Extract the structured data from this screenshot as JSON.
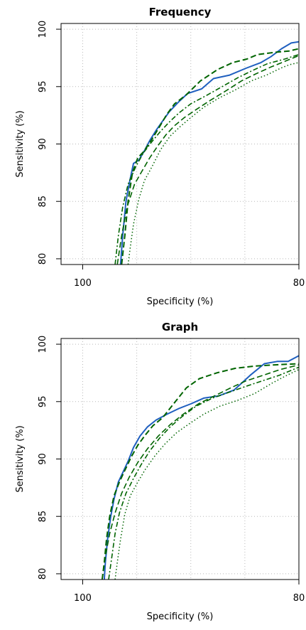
{
  "chart_data": [
    {
      "type": "line",
      "title": "Frequency",
      "xlabel": "Specificity (%)",
      "ylabel": "Sensitivity (%)",
      "xlim": [
        102,
        80
      ],
      "ylim": [
        79.5,
        100.5
      ],
      "xticks": [
        100,
        80
      ],
      "yticks": [
        80,
        85,
        90,
        95,
        100
      ],
      "grid": true,
      "series": [
        {
          "style": "solid",
          "color": "#1f5fbf",
          "width": 2,
          "points": [
            [
              96.5,
              79.5
            ],
            [
              96.3,
              82
            ],
            [
              96.0,
              85
            ],
            [
              95.6,
              87
            ],
            [
              95.3,
              88.3
            ],
            [
              94.8,
              88.6
            ],
            [
              94.3,
              89.4
            ],
            [
              93.8,
              90.3
            ],
            [
              93.2,
              91.2
            ],
            [
              92.6,
              92.0
            ],
            [
              92.0,
              92.8
            ],
            [
              91.2,
              93.6
            ],
            [
              90.3,
              94.4
            ],
            [
              89.0,
              94.8
            ],
            [
              87.9,
              95.7
            ],
            [
              86.4,
              96.0
            ],
            [
              84.9,
              96.6
            ],
            [
              83.5,
              97.1
            ],
            [
              82.6,
              97.6
            ],
            [
              81.6,
              98.3
            ],
            [
              80.7,
              98.8
            ],
            [
              80.0,
              98.9
            ]
          ]
        },
        {
          "style": "dash",
          "color": "#006400",
          "width": 2,
          "points": [
            [
              96.4,
              79.5
            ],
            [
              96.1,
              82
            ],
            [
              95.8,
              85
            ],
            [
              95.4,
              87.5
            ],
            [
              94.9,
              88.8
            ],
            [
              94.3,
              89.4
            ],
            [
              93.6,
              90.4
            ],
            [
              92.9,
              91.5
            ],
            [
              92.2,
              92.6
            ],
            [
              91.5,
              93.5
            ],
            [
              90.4,
              94.3
            ],
            [
              89.1,
              95.5
            ],
            [
              87.5,
              96.5
            ],
            [
              86.1,
              97.1
            ],
            [
              84.8,
              97.4
            ],
            [
              83.8,
              97.8
            ],
            [
              82.1,
              98.0
            ],
            [
              80.9,
              98.1
            ],
            [
              80.0,
              98.3
            ]
          ]
        },
        {
          "style": "dashdot",
          "color": "#006400",
          "width": 1.6,
          "points": [
            [
              97.0,
              79.5
            ],
            [
              96.7,
              82
            ],
            [
              96.3,
              84.5
            ],
            [
              95.8,
              86.5
            ],
            [
              95.1,
              88.0
            ],
            [
              94.4,
              89.2
            ],
            [
              93.6,
              90.2
            ],
            [
              92.8,
              91.1
            ],
            [
              92.0,
              91.9
            ],
            [
              91.1,
              92.7
            ],
            [
              90.0,
              93.5
            ],
            [
              88.6,
              94.2
            ],
            [
              87.1,
              95.0
            ],
            [
              85.6,
              95.8
            ],
            [
              84.3,
              96.4
            ],
            [
              82.9,
              97.0
            ],
            [
              81.3,
              97.4
            ],
            [
              80.0,
              97.8
            ]
          ]
        },
        {
          "style": "dash",
          "color": "#006400",
          "width": 1.6,
          "points": [
            [
              96.8,
              79.5
            ],
            [
              96.4,
              82
            ],
            [
              95.9,
              84.5
            ],
            [
              95.2,
              86.5
            ],
            [
              94.6,
              87.5
            ],
            [
              93.8,
              88.8
            ],
            [
              93.0,
              89.9
            ],
            [
              92.3,
              90.8
            ],
            [
              91.5,
              91.6
            ],
            [
              90.6,
              92.3
            ],
            [
              89.5,
              93.0
            ],
            [
              88.2,
              93.8
            ],
            [
              86.8,
              94.6
            ],
            [
              85.3,
              95.5
            ],
            [
              84.0,
              96.1
            ],
            [
              82.6,
              96.7
            ],
            [
              81.3,
              97.2
            ],
            [
              80.0,
              97.7
            ]
          ]
        },
        {
          "style": "dot",
          "color": "#006400",
          "width": 1.5,
          "points": [
            [
              95.8,
              79.5
            ],
            [
              95.6,
              81
            ],
            [
              95.3,
              83
            ],
            [
              94.8,
              85.2
            ],
            [
              94.3,
              86.8
            ],
            [
              93.6,
              88.0
            ],
            [
              92.8,
              89.5
            ],
            [
              91.9,
              90.7
            ],
            [
              91.0,
              91.5
            ],
            [
              90.0,
              92.3
            ],
            [
              88.8,
              93.2
            ],
            [
              87.4,
              94.0
            ],
            [
              85.9,
              94.7
            ],
            [
              84.4,
              95.5
            ],
            [
              83.0,
              96.0
            ],
            [
              81.7,
              96.6
            ],
            [
              80.9,
              96.9
            ],
            [
              80.0,
              97.1
            ]
          ]
        }
      ]
    },
    {
      "type": "line",
      "title": "Graph",
      "xlabel": "Specificity (%)",
      "ylabel": "Sensitivity (%)",
      "xlim": [
        102,
        80
      ],
      "ylim": [
        79.5,
        100.5
      ],
      "xticks": [
        100,
        80
      ],
      "yticks": [
        80,
        85,
        90,
        95,
        100
      ],
      "grid": true,
      "series": [
        {
          "style": "solid",
          "color": "#1f5fbf",
          "width": 2,
          "points": [
            [
              98.0,
              79.5
            ],
            [
              97.9,
              81
            ],
            [
              97.7,
              83
            ],
            [
              97.4,
              85
            ],
            [
              97.1,
              86.5
            ],
            [
              96.7,
              88.0
            ],
            [
              96.3,
              88.8
            ],
            [
              95.8,
              89.8
            ],
            [
              95.3,
              91.0
            ],
            [
              94.7,
              92.0
            ],
            [
              94.0,
              92.8
            ],
            [
              93.2,
              93.4
            ],
            [
              92.2,
              93.9
            ],
            [
              91.1,
              94.4
            ],
            [
              90.0,
              94.8
            ],
            [
              88.8,
              95.3
            ],
            [
              87.4,
              95.5
            ],
            [
              86.0,
              96.0
            ],
            [
              84.5,
              97.3
            ],
            [
              83.2,
              98.3
            ],
            [
              82.0,
              98.5
            ],
            [
              81.0,
              98.5
            ],
            [
              80.0,
              99.0
            ]
          ]
        },
        {
          "style": "dash",
          "color": "#006400",
          "width": 2,
          "points": [
            [
              98.2,
              79.5
            ],
            [
              98.0,
              81
            ],
            [
              97.8,
              83
            ],
            [
              97.5,
              85
            ],
            [
              97.1,
              86.8
            ],
            [
              96.6,
              88.0
            ],
            [
              96.1,
              89.0
            ],
            [
              95.5,
              90.2
            ],
            [
              94.9,
              91.2
            ],
            [
              94.2,
              92.1
            ],
            [
              93.5,
              92.9
            ],
            [
              92.6,
              93.6
            ],
            [
              91.6,
              94.8
            ],
            [
              90.4,
              96.2
            ],
            [
              89.2,
              97.0
            ],
            [
              87.6,
              97.5
            ],
            [
              85.9,
              97.9
            ],
            [
              84.0,
              98.1
            ],
            [
              82.2,
              98.2
            ],
            [
              80.0,
              98.3
            ]
          ]
        },
        {
          "style": "dashdot",
          "color": "#006400",
          "width": 1.6,
          "points": [
            [
              97.6,
              79.5
            ],
            [
              97.3,
              81.5
            ],
            [
              97.0,
              83.5
            ],
            [
              96.6,
              85.3
            ],
            [
              96.0,
              87.0
            ],
            [
              95.3,
              88.3
            ],
            [
              94.6,
              89.5
            ],
            [
              93.8,
              90.7
            ],
            [
              92.9,
              91.8
            ],
            [
              91.9,
              92.8
            ],
            [
              90.8,
              93.7
            ],
            [
              89.5,
              94.6
            ],
            [
              88.0,
              95.3
            ],
            [
              86.5,
              95.8
            ],
            [
              85.0,
              96.3
            ],
            [
              83.4,
              96.8
            ],
            [
              81.8,
              97.3
            ],
            [
              80.0,
              98.0
            ]
          ]
        },
        {
          "style": "dash",
          "color": "#006400",
          "width": 1.6,
          "points": [
            [
              98.2,
              79.5
            ],
            [
              97.9,
              81.5
            ],
            [
              97.5,
              83.5
            ],
            [
              97.0,
              85.3
            ],
            [
              96.4,
              87.0
            ],
            [
              95.7,
              88.4
            ],
            [
              94.9,
              89.7
            ],
            [
              94.0,
              90.9
            ],
            [
              93.0,
              92.0
            ],
            [
              91.9,
              93.0
            ],
            [
              90.7,
              93.9
            ],
            [
              89.3,
              94.8
            ],
            [
              87.8,
              95.5
            ],
            [
              86.3,
              96.2
            ],
            [
              84.9,
              96.8
            ],
            [
              83.3,
              97.3
            ],
            [
              81.7,
              97.8
            ],
            [
              80.0,
              98.2
            ]
          ]
        },
        {
          "style": "dot",
          "color": "#006400",
          "width": 1.5,
          "points": [
            [
              97.0,
              79.5
            ],
            [
              96.8,
              81
            ],
            [
              96.5,
              83
            ],
            [
              96.1,
              85.2
            ],
            [
              95.6,
              86.8
            ],
            [
              94.9,
              88.0
            ],
            [
              94.2,
              89.1
            ],
            [
              93.3,
              90.3
            ],
            [
              92.4,
              91.3
            ],
            [
              91.3,
              92.3
            ],
            [
              90.1,
              93.1
            ],
            [
              88.8,
              93.9
            ],
            [
              87.3,
              94.6
            ],
            [
              85.7,
              95.1
            ],
            [
              84.1,
              95.7
            ],
            [
              82.5,
              96.6
            ],
            [
              81.3,
              97.2
            ],
            [
              80.0,
              97.8
            ]
          ]
        }
      ]
    }
  ]
}
